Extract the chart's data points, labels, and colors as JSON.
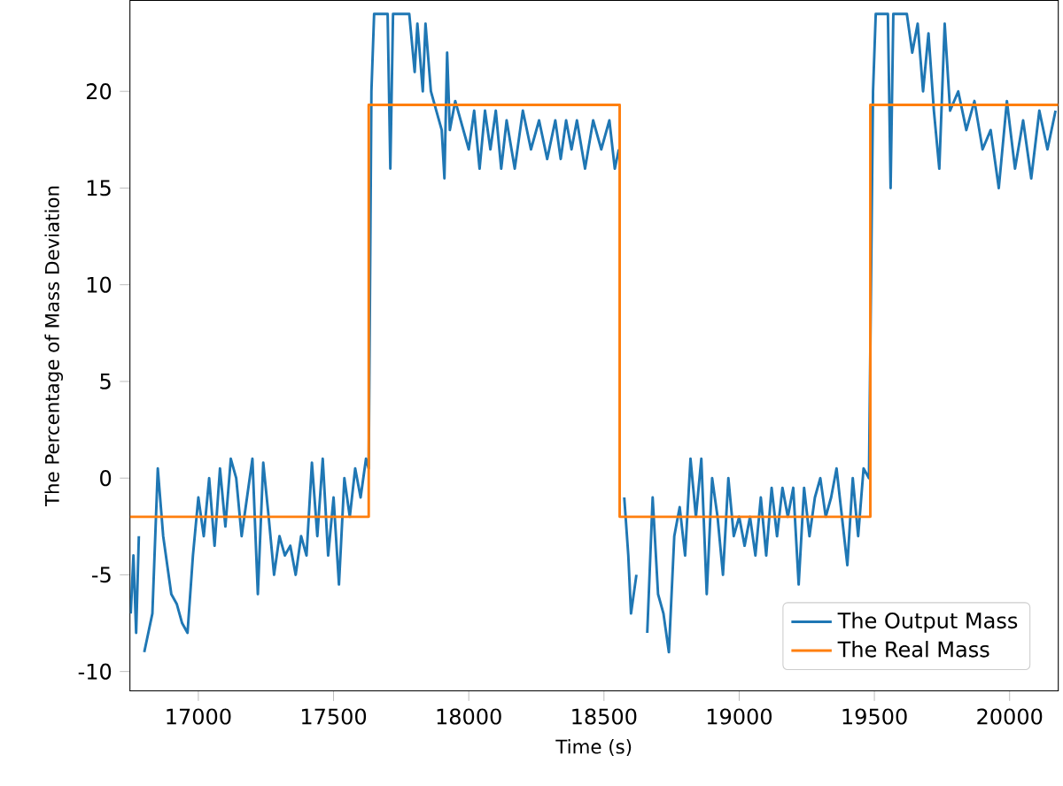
{
  "chart_data": {
    "type": "line",
    "xlabel": "Time (s)",
    "ylabel": "The Percentage of Mass Deviation",
    "xlim": [
      16747,
      20180
    ],
    "ylim": [
      -11,
      24.7
    ],
    "xticks": [
      17000,
      17500,
      18000,
      18500,
      19000,
      19500,
      20000
    ],
    "yticks": [
      -10,
      -5,
      0,
      5,
      10,
      15,
      20
    ],
    "legend": "bottom right",
    "grid": false,
    "series": [
      {
        "name": "The Output Mass",
        "color": "#1f77b4",
        "x": [
          16750,
          16760,
          16770,
          16780,
          16790,
          16800,
          16830,
          16850,
          16870,
          16900,
          16920,
          16940,
          16960,
          16980,
          17000,
          17020,
          17040,
          17060,
          17080,
          17100,
          17120,
          17140,
          17160,
          17180,
          17200,
          17220,
          17240,
          17260,
          17280,
          17300,
          17320,
          17340,
          17360,
          17380,
          17400,
          17420,
          17440,
          17460,
          17480,
          17500,
          17520,
          17540,
          17560,
          17580,
          17600,
          17620,
          17630,
          17640,
          17650,
          17700,
          17710,
          17720,
          17780,
          17800,
          17810,
          17830,
          17840,
          17860,
          17880,
          17900,
          17910,
          17920,
          17930,
          17950,
          17980,
          18000,
          18020,
          18040,
          18060,
          18080,
          18100,
          18120,
          18140,
          18170,
          18200,
          18230,
          18260,
          18290,
          18320,
          18340,
          18360,
          18380,
          18400,
          18430,
          18460,
          18490,
          18520,
          18540,
          18555,
          18565,
          18575,
          18590,
          18600,
          18620,
          18640,
          18660,
          18680,
          18700,
          18720,
          18740,
          18760,
          18780,
          18800,
          18820,
          18840,
          18860,
          18880,
          18900,
          18920,
          18940,
          18960,
          18980,
          19000,
          19020,
          19040,
          19060,
          19080,
          19100,
          19120,
          19140,
          19160,
          19180,
          19200,
          19220,
          19240,
          19260,
          19280,
          19300,
          19320,
          19340,
          19360,
          19380,
          19400,
          19420,
          19440,
          19460,
          19480,
          19495,
          19505,
          19550,
          19560,
          19570,
          19620,
          19640,
          19660,
          19680,
          19700,
          19720,
          19740,
          19760,
          19780,
          19810,
          19840,
          19870,
          19900,
          19930,
          19960,
          19990,
          20020,
          20050,
          20080,
          20110,
          20140,
          20170
        ],
        "values": [
          -7,
          -4,
          -8,
          -3,
          null,
          -9,
          -7,
          0.5,
          -3,
          -6,
          -6.5,
          -7.5,
          -8,
          -4,
          -1,
          -3,
          0,
          -3.5,
          0.5,
          -2.5,
          1,
          0,
          -3,
          -1,
          1,
          -6,
          0.8,
          -2,
          -5,
          -3,
          -4,
          -3.5,
          -5,
          -3,
          -4,
          0.8,
          -3,
          1,
          -4,
          -1,
          -5.5,
          0,
          -2,
          0.5,
          -1,
          1,
          0.5,
          20,
          24,
          24,
          16,
          24,
          24,
          21,
          23.5,
          20,
          23.5,
          20,
          19,
          18,
          15.5,
          22,
          18,
          19.5,
          18,
          17,
          19,
          16,
          19,
          17,
          19,
          16,
          18.5,
          16,
          19,
          17,
          18.5,
          16.5,
          18.5,
          16.5,
          18.5,
          17,
          18.5,
          16,
          18.5,
          17,
          18.5,
          16,
          17,
          null,
          -1,
          -4,
          -7,
          -5,
          null,
          -8,
          -1,
          -6,
          -7,
          -9,
          -3,
          -1.5,
          -4,
          1,
          -2,
          1,
          -6,
          0,
          -2,
          -5,
          0,
          -3,
          -2,
          -3.5,
          -2,
          -4,
          -1,
          -4,
          -0.5,
          -3,
          -0.5,
          -2,
          -0.5,
          -5.5,
          -0.5,
          -3,
          -1,
          0,
          -2,
          -1,
          0.5,
          -2,
          -4.5,
          0,
          -3,
          0.5,
          0,
          20,
          24,
          24,
          15,
          24,
          24,
          22,
          23.5,
          20,
          23,
          19,
          16,
          23.5,
          19,
          20,
          18,
          19.5,
          17,
          18,
          15,
          19.5,
          16,
          18.5,
          15.5,
          19,
          17,
          19
        ]
      },
      {
        "name": "The Real Mass",
        "color": "#ff7f0e",
        "x": [
          16747,
          17630,
          17630,
          18558,
          18558,
          19485,
          19485,
          20180
        ],
        "values": [
          -2,
          -2,
          19.3,
          19.3,
          -2,
          -2,
          19.3,
          19.3
        ]
      }
    ]
  }
}
